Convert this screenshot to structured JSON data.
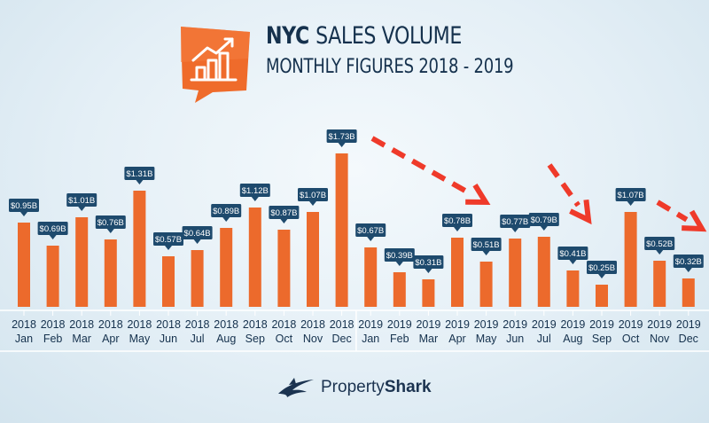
{
  "title": {
    "bold": "NYC",
    "rest": "SALES VOLUME",
    "subtitle": "MONTHLY FIGURES 2018 - 2019"
  },
  "brand": {
    "name_light": "Property",
    "name_bold": "Shark"
  },
  "colors": {
    "bar": "#ec6a2c",
    "label_bg": "#1e4a6d",
    "label_text": "#ffffff",
    "axis_text": "#15314d",
    "arrow": "#ef3a2a",
    "icon_bg": "#ef6b2b"
  },
  "icons": {
    "title_icon": "growth-chart-icon",
    "logo_icon": "shark-logo-icon"
  },
  "chart_data": {
    "type": "bar",
    "title": "NYC SALES VOLUME",
    "subtitle": "MONTHLY FIGURES 2018 - 2019",
    "ylim": [
      0,
      2.0
    ],
    "grid": false,
    "categories": [
      {
        "year": "2018",
        "month": "Jan"
      },
      {
        "year": "2018",
        "month": "Feb"
      },
      {
        "year": "2018",
        "month": "Mar"
      },
      {
        "year": "2018",
        "month": "Apr"
      },
      {
        "year": "2018",
        "month": "May"
      },
      {
        "year": "2018",
        "month": "Jun"
      },
      {
        "year": "2018",
        "month": "Jul"
      },
      {
        "year": "2018",
        "month": "Aug"
      },
      {
        "year": "2018",
        "month": "Sep"
      },
      {
        "year": "2018",
        "month": "Oct"
      },
      {
        "year": "2018",
        "month": "Nov"
      },
      {
        "year": "2018",
        "month": "Dec"
      },
      {
        "year": "2019",
        "month": "Jan"
      },
      {
        "year": "2019",
        "month": "Feb"
      },
      {
        "year": "2019",
        "month": "Mar"
      },
      {
        "year": "2019",
        "month": "Apr"
      },
      {
        "year": "2019",
        "month": "May"
      },
      {
        "year": "2019",
        "month": "Jun"
      },
      {
        "year": "2019",
        "month": "Jul"
      },
      {
        "year": "2019",
        "month": "Aug"
      },
      {
        "year": "2019",
        "month": "Sep"
      },
      {
        "year": "2019",
        "month": "Oct"
      },
      {
        "year": "2019",
        "month": "Nov"
      },
      {
        "year": "2019",
        "month": "Dec"
      }
    ],
    "values": [
      0.95,
      0.69,
      1.01,
      0.76,
      1.31,
      0.57,
      0.64,
      0.89,
      1.12,
      0.87,
      1.07,
      1.73,
      0.67,
      0.39,
      0.31,
      0.78,
      0.51,
      0.77,
      0.79,
      0.41,
      0.25,
      1.07,
      0.52,
      0.32
    ],
    "labels": [
      "$0.95B",
      "$0.69B",
      "$1.01B",
      "$0.76B",
      "$1.31B",
      "$0.57B",
      "$0.64B",
      "$0.89B",
      "$1.12B",
      "$0.87B",
      "$1.07B",
      "$1.73B",
      "$0.67B",
      "$0.39B",
      "$0.31B",
      "$0.78B",
      "$0.51B",
      "$0.77B",
      "$0.79B",
      "$0.41B",
      "$0.25B",
      "$1.07B",
      "$0.52B",
      "$0.32B"
    ],
    "annotations": [
      {
        "type": "dashed-arrow",
        "from_index": 12,
        "to_index": 17
      },
      {
        "type": "dashed-arrow",
        "from_index": 19,
        "to_index": 21
      },
      {
        "type": "dashed-arrow",
        "from_index": 22,
        "to_index": 23
      }
    ]
  }
}
